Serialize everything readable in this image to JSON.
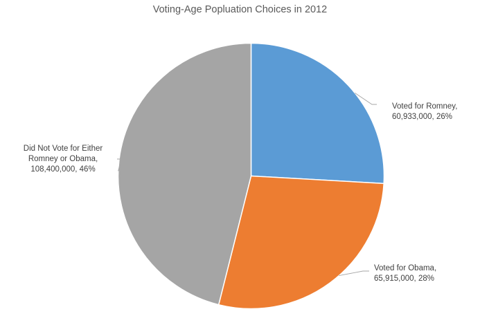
{
  "chart_data": {
    "type": "pie",
    "title": "Voting-Age Popluation Choices in 2012",
    "slices": [
      {
        "label": "Voted for Romney",
        "value": 60933000,
        "percent": 26,
        "color": "#5B9BD5",
        "label_lines": [
          "Voted for Romney,",
          "60,933,000, 26%"
        ]
      },
      {
        "label": "Voted for Obama",
        "value": 65915000,
        "percent": 28,
        "color": "#ED7D31",
        "label_lines": [
          "Voted for Obama,",
          "65,915,000, 28%"
        ]
      },
      {
        "label": "Did Not Vote for Either Romney or Obama",
        "value": 108400000,
        "percent": 46,
        "color": "#A5A5A5",
        "label_lines": [
          "Did Not Vote for Either",
          "Romney or Obama,",
          "108,400,000, 46%"
        ]
      }
    ],
    "start_angle": "12 o'clock",
    "direction": "clockwise",
    "legend": "none",
    "leader_line_color": "#A6A6A6",
    "slice_border_color": "#FFFFFF"
  }
}
